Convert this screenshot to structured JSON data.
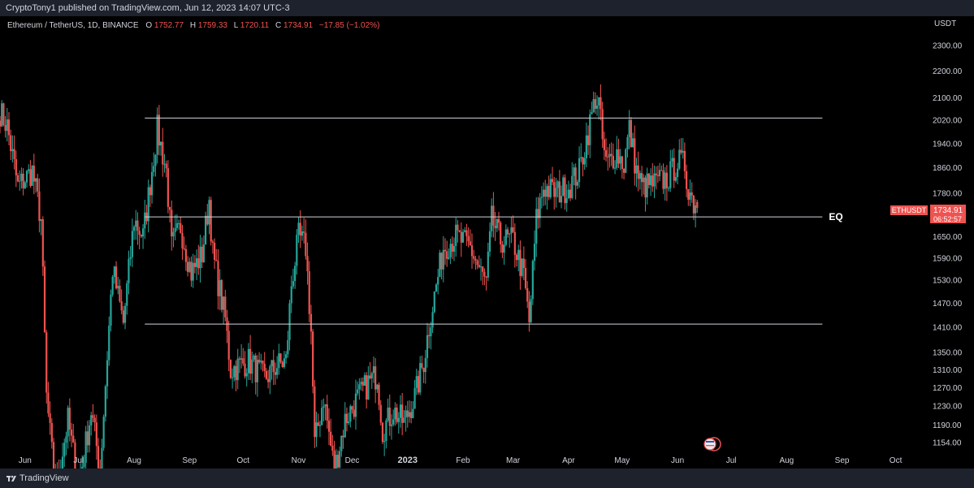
{
  "header": {
    "published": "CryptoTony1 published on TradingView.com, Jun 12, 2023 14:07 UTC-3"
  },
  "legend": {
    "symbol": "Ethereum / TetherUS, 1D, BINANCE",
    "o_label": "O",
    "o_value": "1752.77",
    "h_label": "H",
    "h_value": "1759.33",
    "l_label": "L",
    "l_value": "1720.11",
    "c_label": "C",
    "c_value": "1734.91",
    "change": "−17.85 (−1.02%)"
  },
  "price_tag": {
    "symbol": "ETHUSDT",
    "price": "1734.91",
    "countdown": "06:52:57"
  },
  "footer": {
    "brand": "TradingView"
  },
  "colors": {
    "up": "#26a69a",
    "down": "#ef5350",
    "background": "#000000",
    "frame": "#1e222d",
    "axis_text": "#d1d4dc",
    "level_line": "#d1d4dc"
  },
  "chart_data": {
    "type": "candlestick",
    "y_unit": "USDT",
    "y_scale": "log",
    "ylim": [
      1135,
      2420
    ],
    "y_ticks": [
      1154,
      1190,
      1230,
      1270,
      1310,
      1350,
      1410,
      1470,
      1530,
      1590,
      1650,
      1780,
      1860,
      1940,
      2020,
      2100,
      2200,
      2300
    ],
    "y_tick_labels": [
      "1154.00",
      "1190.00",
      "1230.00",
      "1270.00",
      "1310.00",
      "1350.00",
      "1410.00",
      "1470.00",
      "1530.00",
      "1590.00",
      "1650.00",
      "1780.00",
      "1860.00",
      "1940.00",
      "2020.00",
      "2100.00",
      "2200.00",
      "2300.00"
    ],
    "x_range": [
      "2022-05-18",
      "2023-10-18"
    ],
    "x_ticks": [
      {
        "date": "2022-06-01",
        "label": "Jun"
      },
      {
        "date": "2022-07-01",
        "label": "Jul"
      },
      {
        "date": "2022-08-01",
        "label": "Aug"
      },
      {
        "date": "2022-09-01",
        "label": "Sep"
      },
      {
        "date": "2022-10-01",
        "label": "Oct"
      },
      {
        "date": "2022-11-01",
        "label": "Nov"
      },
      {
        "date": "2022-12-01",
        "label": "Dec"
      },
      {
        "date": "2023-01-01",
        "label": "2023"
      },
      {
        "date": "2023-02-01",
        "label": "Feb"
      },
      {
        "date": "2023-03-01",
        "label": "Mar"
      },
      {
        "date": "2023-04-01",
        "label": "Apr"
      },
      {
        "date": "2023-05-01",
        "label": "May"
      },
      {
        "date": "2023-06-01",
        "label": "Jun"
      },
      {
        "date": "2023-07-01",
        "label": "Jul"
      },
      {
        "date": "2023-08-01",
        "label": "Aug"
      },
      {
        "date": "2023-09-01",
        "label": "Sep"
      },
      {
        "date": "2023-10-01",
        "label": "Oct"
      }
    ],
    "levels": [
      {
        "price": 2028,
        "start": "2022-08-07",
        "end": "2023-08-21",
        "label": ""
      },
      {
        "price": 1708,
        "start": "2022-08-07",
        "end": "2023-08-21",
        "label": "EQ"
      },
      {
        "price": 1418,
        "start": "2022-08-07",
        "end": "2023-08-21",
        "label": ""
      }
    ],
    "anchors": [
      [
        "2022-05-18",
        2050
      ],
      [
        "2022-05-22",
        2000
      ],
      [
        "2022-05-28",
        1800
      ],
      [
        "2022-06-05",
        1850
      ],
      [
        "2022-06-10",
        1700
      ],
      [
        "2022-06-13",
        1250
      ],
      [
        "2022-06-18",
        1060
      ],
      [
        "2022-06-25",
        1200
      ],
      [
        "2022-07-01",
        1070
      ],
      [
        "2022-07-08",
        1220
      ],
      [
        "2022-07-13",
        1100
      ],
      [
        "2022-07-20",
        1560
      ],
      [
        "2022-07-26",
        1420
      ],
      [
        "2022-08-01",
        1700
      ],
      [
        "2022-08-06",
        1650
      ],
      [
        "2022-08-14",
        1990
      ],
      [
        "2022-08-19",
        1850
      ],
      [
        "2022-08-22",
        1620
      ],
      [
        "2022-08-27",
        1680
      ],
      [
        "2022-09-02",
        1550
      ],
      [
        "2022-09-08",
        1600
      ],
      [
        "2022-09-12",
        1760
      ],
      [
        "2022-09-14",
        1600
      ],
      [
        "2022-09-21",
        1430
      ],
      [
        "2022-09-24",
        1310
      ],
      [
        "2022-10-04",
        1330
      ],
      [
        "2022-10-13",
        1290
      ],
      [
        "2022-10-20",
        1320
      ],
      [
        "2022-10-25",
        1330
      ],
      [
        "2022-10-28",
        1520
      ],
      [
        "2022-11-01",
        1650
      ],
      [
        "2022-11-05",
        1620
      ],
      [
        "2022-11-08",
        1400
      ],
      [
        "2022-11-10",
        1150
      ],
      [
        "2022-11-15",
        1250
      ],
      [
        "2022-11-21",
        1100
      ],
      [
        "2022-11-27",
        1200
      ],
      [
        "2022-12-03",
        1240
      ],
      [
        "2022-12-10",
        1280
      ],
      [
        "2022-12-15",
        1300
      ],
      [
        "2022-12-18",
        1180
      ],
      [
        "2022-12-24",
        1220
      ],
      [
        "2022-12-30",
        1195
      ],
      [
        "2023-01-05",
        1250
      ],
      [
        "2023-01-10",
        1330
      ],
      [
        "2023-01-14",
        1440
      ],
      [
        "2023-01-21",
        1620
      ],
      [
        "2023-01-28",
        1650
      ],
      [
        "2023-02-05",
        1620
      ],
      [
        "2023-02-10",
        1560
      ],
      [
        "2023-02-14",
        1520
      ],
      [
        "2023-02-17",
        1700
      ],
      [
        "2023-02-22",
        1640
      ],
      [
        "2023-03-01",
        1640
      ],
      [
        "2023-03-07",
        1540
      ],
      [
        "2023-03-10",
        1420
      ],
      [
        "2023-03-14",
        1700
      ],
      [
        "2023-03-18",
        1800
      ],
      [
        "2023-03-25",
        1780
      ],
      [
        "2023-04-01",
        1800
      ],
      [
        "2023-04-07",
        1850
      ],
      [
        "2023-04-13",
        2010
      ],
      [
        "2023-04-16",
        2100
      ],
      [
        "2023-04-18",
        2080
      ],
      [
        "2023-04-20",
        1950
      ],
      [
        "2023-04-22",
        1870
      ],
      [
        "2023-04-28",
        1910
      ],
      [
        "2023-05-02",
        1870
      ],
      [
        "2023-05-05",
        1990
      ],
      [
        "2023-05-09",
        1850
      ],
      [
        "2023-05-12",
        1800
      ],
      [
        "2023-05-20",
        1810
      ],
      [
        "2023-05-27",
        1830
      ],
      [
        "2023-06-01",
        1880
      ],
      [
        "2023-06-05",
        1870
      ],
      [
        "2023-06-06",
        1820
      ],
      [
        "2023-06-10",
        1750
      ],
      [
        "2023-06-12",
        1735
      ]
    ],
    "last_candle": {
      "date": "2023-06-12",
      "open": 1752.77,
      "high": 1759.33,
      "low": 1720.11,
      "close": 1734.91
    }
  }
}
